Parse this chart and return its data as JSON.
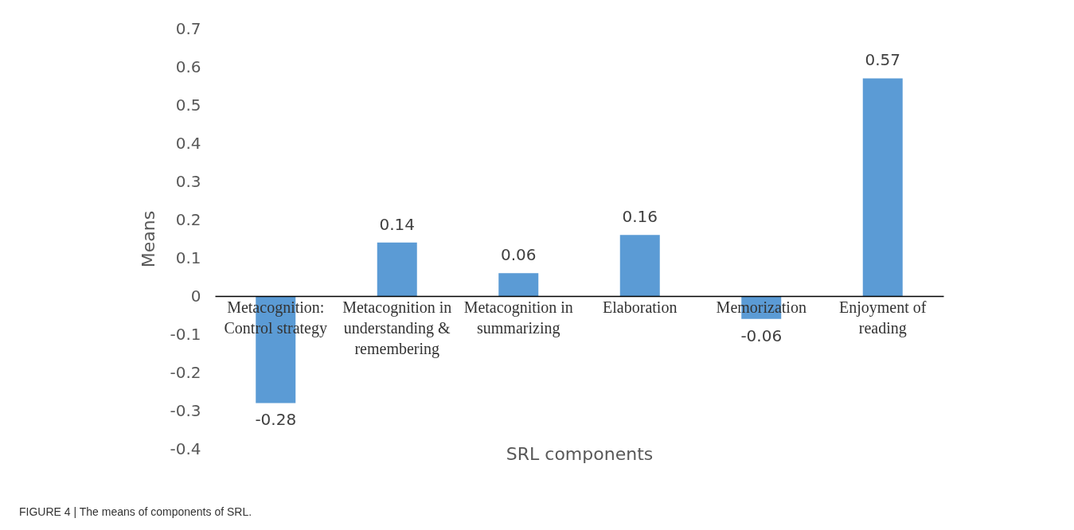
{
  "chart_data": {
    "type": "bar",
    "xlabel": "SRL components",
    "ylabel": "Means",
    "categories": [
      "Metacognition: Control strategy",
      "Metacognition in understanding & remembering",
      "Metacognition in summarizing",
      "Elaboration",
      "Memorization",
      "Enjoyment of reading"
    ],
    "values": [
      -0.28,
      0.14,
      0.06,
      0.16,
      -0.06,
      0.57
    ],
    "color": "#5b9bd5",
    "ylim": [
      -0.4,
      0.7
    ],
    "yticks": [
      -0.4,
      -0.3,
      -0.2,
      -0.1,
      0,
      0.1,
      0.2,
      0.3,
      0.4,
      0.5,
      0.6,
      0.7
    ],
    "grid": false,
    "data_labels": true,
    "annotations": [
      "FIGURE 4 | The means of components of SRL."
    ]
  }
}
